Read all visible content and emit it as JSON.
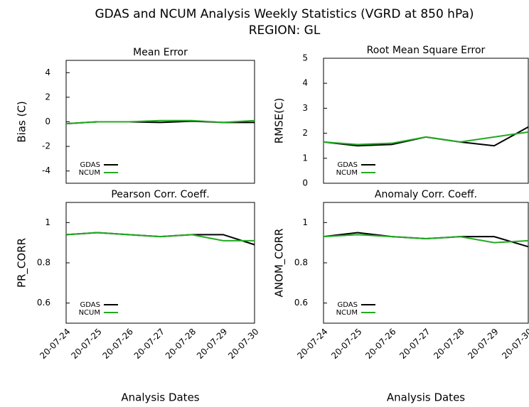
{
  "title": "GDAS and NCUM Analysis Weekly Statistics (VGRD at 850 hPa)",
  "subtitle": "REGION: GL",
  "chart_data": [
    {
      "type": "line",
      "title": "Mean Error",
      "ylabel": "Bias (C)",
      "categories": [
        null,
        null,
        null,
        null,
        null,
        null,
        null
      ],
      "series": [
        {
          "name": "GDAS",
          "color": "#000000",
          "values": [
            -0.15,
            0.0,
            0.0,
            -0.05,
            0.05,
            -0.05,
            -0.05
          ]
        },
        {
          "name": "NCUM",
          "color": "#22aa22",
          "values": [
            -0.15,
            0.0,
            0.0,
            0.1,
            0.1,
            -0.05,
            0.1
          ]
        }
      ],
      "ylim": [
        -5,
        5
      ],
      "yticks": [
        -4,
        -2,
        0,
        2,
        4
      ],
      "legend": "lower left",
      "grid": false
    },
    {
      "type": "line",
      "title": "Root Mean Square Error",
      "ylabel": "RMSE(C)",
      "categories": [
        null,
        null,
        null,
        null,
        null,
        null,
        null
      ],
      "series": [
        {
          "name": "GDAS",
          "color": "#000000",
          "values": [
            1.65,
            1.5,
            1.55,
            1.85,
            1.65,
            1.5,
            2.25
          ]
        },
        {
          "name": "NCUM",
          "color": "#22aa22",
          "values": [
            1.65,
            1.55,
            1.6,
            1.85,
            1.65,
            1.85,
            2.05
          ]
        }
      ],
      "ylim": [
        0,
        5
      ],
      "yticks": [
        0,
        1,
        2,
        3,
        4,
        5
      ],
      "legend": "lower left",
      "grid": false
    },
    {
      "type": "line",
      "title": "Pearson Corr. Coeff.",
      "ylabel": "PR_CORR",
      "xlabel": "Analysis Dates",
      "categories": [
        "20-07-24",
        "20-07-25",
        "20-07-26",
        "20-07-27",
        "20-07-28",
        "20-07-29",
        "20-07-30"
      ],
      "series": [
        {
          "name": "GDAS",
          "color": "#000000",
          "values": [
            0.94,
            0.95,
            0.94,
            0.93,
            0.94,
            0.94,
            0.89
          ]
        },
        {
          "name": "NCUM",
          "color": "#22aa22",
          "values": [
            0.94,
            0.95,
            0.94,
            0.93,
            0.94,
            0.91,
            0.91
          ]
        }
      ],
      "ylim": [
        0.5,
        1.1
      ],
      "yticks": [
        0.6,
        0.8,
        1
      ],
      "legend": "lower left",
      "grid": false
    },
    {
      "type": "line",
      "title": "Anomaly Corr. Coeff.",
      "ylabel": "ANOM_CORR",
      "xlabel": "Analysis Dates",
      "categories": [
        "20-07-24",
        "20-07-25",
        "20-07-26",
        "20-07-27",
        "20-07-28",
        "20-07-29",
        "20-07-30"
      ],
      "series": [
        {
          "name": "GDAS",
          "color": "#000000",
          "values": [
            0.93,
            0.95,
            0.93,
            0.92,
            0.93,
            0.93,
            0.88
          ]
        },
        {
          "name": "NCUM",
          "color": "#22aa22",
          "values": [
            0.93,
            0.94,
            0.93,
            0.92,
            0.93,
            0.9,
            0.91
          ]
        }
      ],
      "ylim": [
        0.5,
        1.1
      ],
      "yticks": [
        0.6,
        0.8,
        1
      ],
      "legend": "lower left",
      "grid": false
    }
  ]
}
